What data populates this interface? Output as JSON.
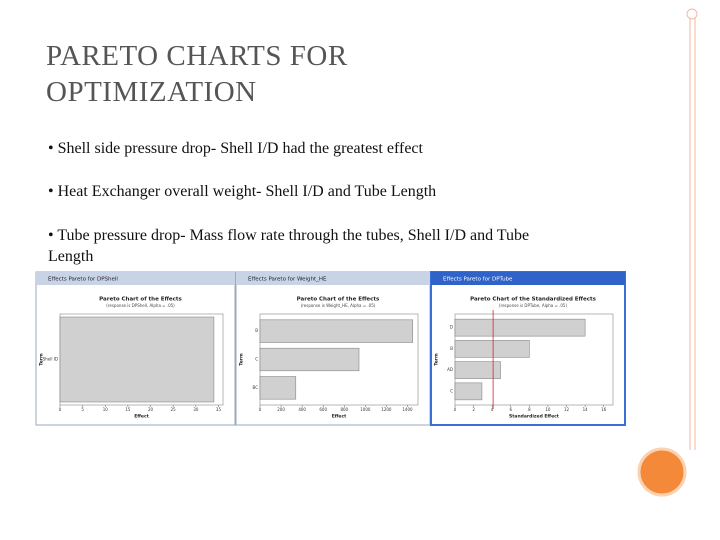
{
  "title": "PARETO CHARTS FOR OPTIMIZATION",
  "bullets": [
    "• Shell side pressure drop- Shell I/D had the greatest effect",
    "• Heat Exchanger overall weight- Shell I/D and Tube Length",
    "• Tube pressure drop- Mass flow rate through the tubes, Shell I/D and Tube Length"
  ],
  "windows": [
    {
      "window_title": "Effects Pareto for DPShell",
      "title": "Pareto Chart of the Effects",
      "subtitle": "(response is DPShell, Alpha = .05)",
      "xlabel": "Effect",
      "ylabel": "Term",
      "categories": [
        "Shell ID"
      ],
      "values": [
        34
      ],
      "xlim": [
        0,
        36
      ],
      "xticks": [
        0,
        5,
        10,
        15,
        20,
        25,
        30,
        35
      ]
    },
    {
      "window_title": "Effects Pareto for Weight_HE",
      "title": "Pareto Chart of the Effects",
      "subtitle": "(response is Weight_HE, Alpha = .05)",
      "xlabel": "Effect",
      "ylabel": "Term",
      "categories": [
        "B",
        "C",
        "BC"
      ],
      "values": [
        1450,
        940,
        340
      ],
      "xlim": [
        0,
        1500
      ],
      "xticks": [
        0,
        200,
        400,
        600,
        800,
        1000,
        1200,
        1400
      ]
    },
    {
      "window_title": "Effects Pareto for DPTube",
      "title": "Pareto Chart of the Standardized Effects",
      "subtitle": "(response is DPTube, Alpha = .05)",
      "xlabel": "Standardized Effect",
      "ylabel": "Term",
      "categories": [
        "D",
        "B",
        "AD",
        "C"
      ],
      "values": [
        14,
        8,
        4.9,
        2.9
      ],
      "xlim": [
        0,
        17
      ],
      "xticks": [
        0,
        2,
        4,
        6,
        8,
        10,
        12,
        14,
        16
      ],
      "reference": 4.1
    }
  ]
}
